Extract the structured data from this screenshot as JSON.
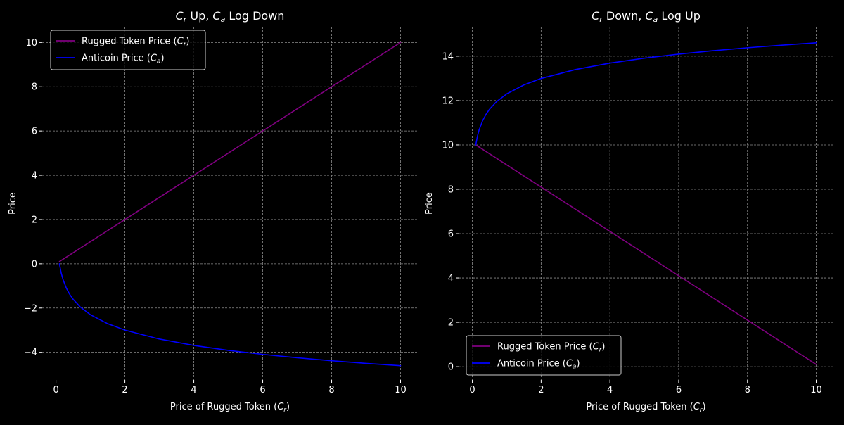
{
  "figure": {
    "background": "#000000",
    "text_color": "#ffffff",
    "grid_color": "#8c8c8c"
  },
  "chart_data": [
    {
      "type": "line",
      "title": "C_r Up, C_a Log Down",
      "title_parts": {
        "c1": "C",
        "s1": "r",
        "mid": " Up, ",
        "c2": "C",
        "s2": "a",
        "tail": " Log Down"
      },
      "xlabel": "Price of Rugged Token (C_r)",
      "xlabel_parts": {
        "pre": "Price of Rugged Token (",
        "c": "C",
        "s": "r",
        "post": ")"
      },
      "ylabel": "Price",
      "xlim": [
        -0.4,
        10.5
      ],
      "ylim": [
        -5.25,
        10.71
      ],
      "xticks": [
        0,
        2,
        4,
        6,
        8,
        10
      ],
      "yticks": [
        -4,
        -2,
        0,
        2,
        4,
        6,
        8,
        10
      ],
      "ytick_labels": [
        "−4",
        "−2",
        "0",
        "2",
        "4",
        "6",
        "8",
        "10"
      ],
      "grid": true,
      "legend": "upper left",
      "series": [
        {
          "name": "Rugged Token Price (C_r)",
          "legend_parts": {
            "pre": "Rugged Token Price (",
            "c": "C",
            "s": "r",
            "post": ")"
          },
          "color": "#800080",
          "x": [
            0.1,
            10
          ],
          "y": [
            0.1,
            10
          ]
        },
        {
          "name": "Anticoin Price (C_a)",
          "legend_parts": {
            "pre": "Anticoin Price (",
            "c": "C",
            "s": "a",
            "post": ")"
          },
          "color": "#0000ff",
          "x": [
            0.1,
            0.15,
            0.2,
            0.3,
            0.4,
            0.5,
            0.7,
            1,
            1.5,
            2,
            3,
            4,
            5,
            6,
            7,
            8,
            9,
            10
          ],
          "y": [
            0,
            -0.405,
            -0.693,
            -1.099,
            -1.386,
            -1.609,
            -1.946,
            -2.303,
            -2.708,
            -2.996,
            -3.401,
            -3.689,
            -3.912,
            -4.094,
            -4.248,
            -4.382,
            -4.5,
            -4.605
          ]
        }
      ]
    },
    {
      "type": "line",
      "title": "C_r Down, C_a Log Up",
      "title_parts": {
        "c1": "C",
        "s1": "r",
        "mid": " Down, ",
        "c2": "C",
        "s2": "a",
        "tail": " Log Up"
      },
      "xlabel": "Price of Rugged Token (C_r)",
      "xlabel_parts": {
        "pre": "Price of Rugged Token (",
        "c": "C",
        "s": "r",
        "post": ")"
      },
      "ylabel": "Price",
      "xlim": [
        -0.4,
        10.5
      ],
      "ylim": [
        -0.6,
        15.33
      ],
      "xticks": [
        0,
        2,
        4,
        6,
        8,
        10
      ],
      "yticks": [
        0,
        2,
        4,
        6,
        8,
        10,
        12,
        14
      ],
      "ytick_labels": [
        "0",
        "2",
        "4",
        "6",
        "8",
        "10",
        "12",
        "14"
      ],
      "grid": true,
      "legend": "lower left",
      "series": [
        {
          "name": "Rugged Token Price (C_r)",
          "legend_parts": {
            "pre": "Rugged Token Price (",
            "c": "C",
            "s": "r",
            "post": ")"
          },
          "color": "#800080",
          "x": [
            0.1,
            10
          ],
          "y": [
            10,
            0.1
          ]
        },
        {
          "name": "Anticoin Price (C_a)",
          "legend_parts": {
            "pre": "Anticoin Price (",
            "c": "C",
            "s": "a",
            "post": ")"
          },
          "color": "#0000ff",
          "x": [
            0.1,
            0.15,
            0.2,
            0.3,
            0.4,
            0.5,
            0.7,
            1,
            1.5,
            2,
            3,
            4,
            5,
            6,
            7,
            8,
            9,
            10
          ],
          "y": [
            10,
            10.405,
            10.693,
            11.099,
            11.386,
            11.609,
            11.946,
            12.303,
            12.708,
            12.996,
            13.401,
            13.689,
            13.912,
            14.094,
            14.248,
            14.382,
            14.5,
            14.605
          ]
        }
      ]
    }
  ]
}
